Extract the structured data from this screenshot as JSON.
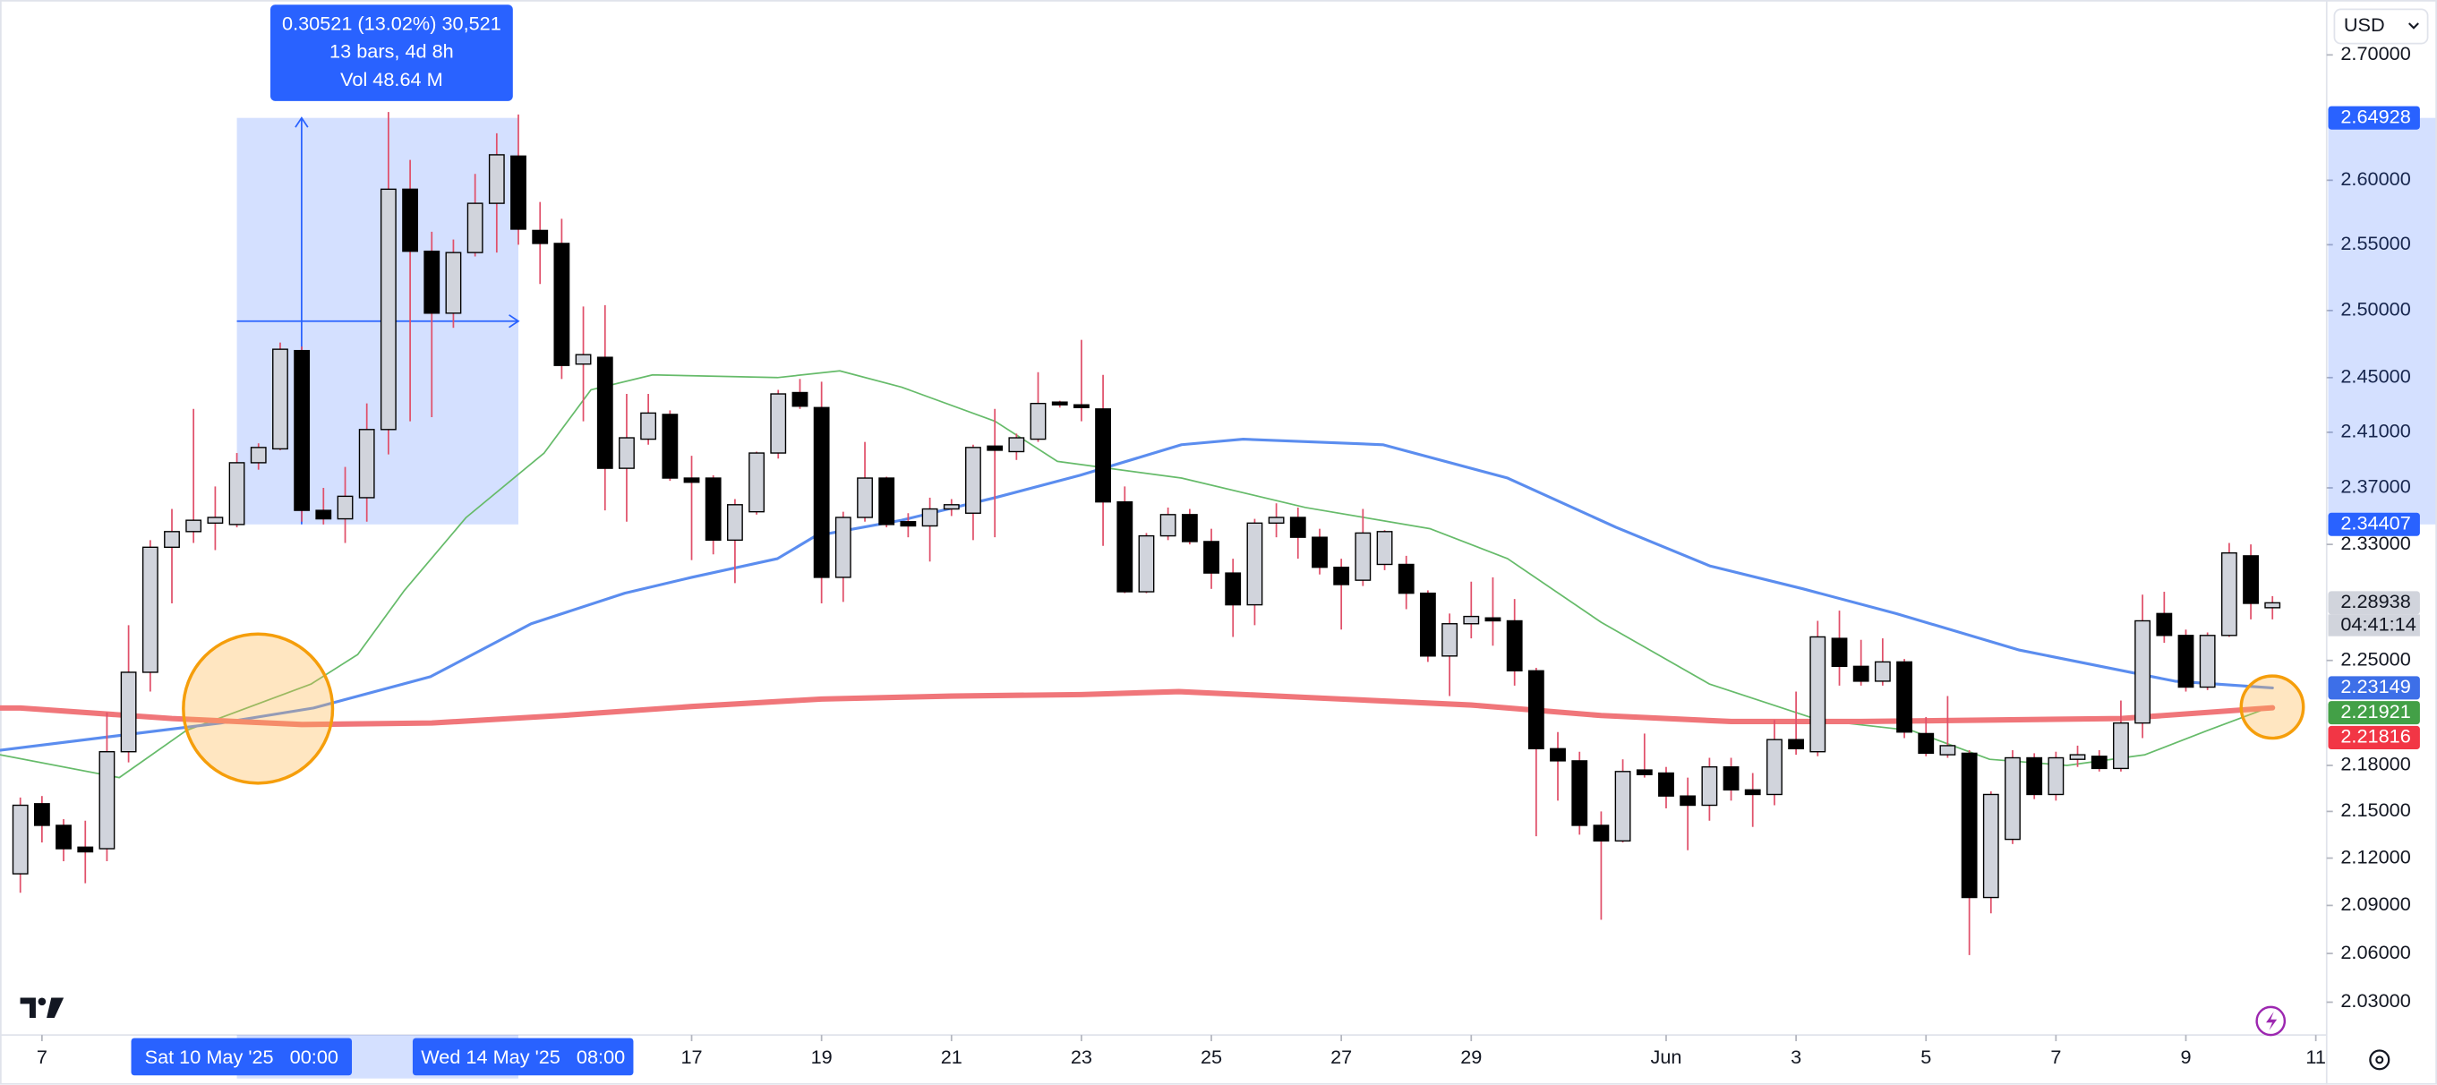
{
  "chart_data": {
    "type": "candlestick",
    "currency": "USD",
    "log_scale": true,
    "x": [
      6.667,
      7,
      7.333,
      7.667,
      8,
      8.333,
      8.667,
      9,
      9.333,
      9.667,
      10,
      10.333,
      10.667,
      11,
      11.333,
      11.667,
      12,
      12.333,
      12.667,
      13,
      13.333,
      13.667,
      14,
      14.333,
      14.667,
      15,
      15.333,
      15.667,
      16,
      16.333,
      16.667,
      17,
      17.333,
      17.667,
      18,
      18.333,
      18.667,
      19,
      19.333,
      19.667,
      20,
      20.333,
      20.667,
      21,
      21.333,
      21.667,
      22,
      22.333,
      22.667,
      23,
      23.333,
      23.667,
      24,
      24.333,
      24.667,
      25,
      25.333,
      25.667,
      26,
      26.333,
      26.667,
      27,
      27.333,
      27.667,
      28,
      28.333,
      28.667,
      29,
      29.333,
      29.667,
      30,
      30.333,
      30.667,
      31,
      31.333,
      31.667,
      32,
      32.333,
      32.667,
      33,
      33.333,
      33.667,
      34,
      34.333,
      34.667,
      35,
      35.333,
      35.667,
      36,
      36.333,
      36.667,
      37,
      37.333,
      37.667,
      38,
      38.333,
      38.667,
      39,
      39.333,
      39.667,
      40,
      40.333,
      40.667,
      41,
      41.333
    ],
    "open": [
      2.11,
      2.155,
      2.141,
      2.127,
      2.126,
      2.189,
      2.242,
      2.328,
      2.339,
      2.345,
      2.344,
      2.388,
      2.398,
      2.47,
      2.354,
      2.348,
      2.363,
      2.412,
      2.593,
      2.545,
      2.498,
      2.544,
      2.582,
      2.619,
      2.561,
      2.551,
      2.46,
      2.465,
      2.384,
      2.405,
      2.423,
      2.377,
      2.377,
      2.333,
      2.353,
      2.395,
      2.439,
      2.428,
      2.307,
      2.349,
      2.377,
      2.346,
      2.343,
      2.355,
      2.352,
      2.4,
      2.396,
      2.405,
      2.432,
      2.43,
      2.427,
      2.36,
      2.297,
      2.336,
      2.351,
      2.332,
      2.31,
      2.288,
      2.345,
      2.349,
      2.335,
      2.314,
      2.305,
      2.316,
      2.316,
      2.296,
      2.253,
      2.275,
      2.279,
      2.277,
      2.243,
      2.191,
      2.183,
      2.141,
      2.131,
      2.177,
      2.175,
      2.16,
      2.154,
      2.179,
      2.164,
      2.161,
      2.197,
      2.189,
      2.265,
      2.246,
      2.236,
      2.249,
      2.201,
      2.187,
      2.188,
      2.095,
      2.132,
      2.185,
      2.161,
      2.184,
      2.186,
      2.178,
      2.208,
      2.282,
      2.267,
      2.232,
      2.267,
      2.322,
      2.286
    ],
    "high": [
      2.159,
      2.16,
      2.145,
      2.144,
      2.215,
      2.274,
      2.333,
      2.355,
      2.427,
      2.371,
      2.395,
      2.402,
      2.476,
      2.473,
      2.37,
      2.385,
      2.431,
      2.654,
      2.616,
      2.56,
      2.554,
      2.605,
      2.637,
      2.652,
      2.583,
      2.57,
      2.503,
      2.504,
      2.438,
      2.438,
      2.426,
      2.393,
      2.379,
      2.362,
      2.396,
      2.441,
      2.449,
      2.447,
      2.353,
      2.403,
      2.378,
      2.352,
      2.363,
      2.362,
      2.401,
      2.427,
      2.409,
      2.454,
      2.433,
      2.478,
      2.452,
      2.371,
      2.338,
      2.356,
      2.355,
      2.341,
      2.32,
      2.348,
      2.359,
      2.356,
      2.341,
      2.32,
      2.355,
      2.34,
      2.322,
      2.298,
      2.282,
      2.304,
      2.307,
      2.292,
      2.245,
      2.202,
      2.189,
      2.15,
      2.184,
      2.201,
      2.179,
      2.172,
      2.185,
      2.185,
      2.175,
      2.21,
      2.229,
      2.277,
      2.284,
      2.264,
      2.265,
      2.251,
      2.212,
      2.226,
      2.19,
      2.163,
      2.19,
      2.188,
      2.189,
      2.193,
      2.19,
      2.223,
      2.295,
      2.297,
      2.271,
      2.269,
      2.331,
      2.33,
      2.294
    ],
    "low": [
      2.098,
      2.13,
      2.118,
      2.104,
      2.118,
      2.182,
      2.229,
      2.289,
      2.331,
      2.326,
      2.342,
      2.383,
      2.397,
      2.346,
      2.344,
      2.331,
      2.346,
      2.394,
      2.418,
      2.421,
      2.487,
      2.541,
      2.544,
      2.55,
      2.52,
      2.449,
      2.418,
      2.354,
      2.346,
      2.401,
      2.375,
      2.319,
      2.323,
      2.303,
      2.351,
      2.391,
      2.427,
      2.289,
      2.29,
      2.346,
      2.342,
      2.335,
      2.318,
      2.35,
      2.333,
      2.335,
      2.39,
      2.403,
      2.428,
      2.418,
      2.329,
      2.296,
      2.296,
      2.333,
      2.33,
      2.299,
      2.266,
      2.274,
      2.335,
      2.32,
      2.309,
      2.271,
      2.301,
      2.312,
      2.285,
      2.249,
      2.226,
      2.265,
      2.26,
      2.233,
      2.134,
      2.157,
      2.135,
      2.081,
      2.13,
      2.172,
      2.152,
      2.125,
      2.144,
      2.157,
      2.14,
      2.154,
      2.187,
      2.186,
      2.233,
      2.233,
      2.233,
      2.198,
      2.186,
      2.185,
      2.059,
      2.085,
      2.129,
      2.158,
      2.157,
      2.179,
      2.176,
      2.176,
      2.198,
      2.262,
      2.229,
      2.23,
      2.266,
      2.278,
      2.278
    ],
    "close": [
      2.154,
      2.141,
      2.126,
      2.124,
      2.189,
      2.242,
      2.328,
      2.339,
      2.347,
      2.349,
      2.388,
      2.399,
      2.471,
      2.354,
      2.348,
      2.364,
      2.412,
      2.593,
      2.545,
      2.498,
      2.544,
      2.582,
      2.62,
      2.562,
      2.551,
      2.459,
      2.467,
      2.384,
      2.406,
      2.424,
      2.377,
      2.374,
      2.333,
      2.358,
      2.395,
      2.438,
      2.429,
      2.307,
      2.349,
      2.377,
      2.344,
      2.343,
      2.355,
      2.358,
      2.399,
      2.397,
      2.406,
      2.431,
      2.43,
      2.428,
      2.36,
      2.297,
      2.336,
      2.351,
      2.332,
      2.31,
      2.288,
      2.345,
      2.349,
      2.335,
      2.314,
      2.302,
      2.338,
      2.339,
      2.296,
      2.253,
      2.275,
      2.28,
      2.277,
      2.243,
      2.191,
      2.183,
      2.141,
      2.131,
      2.176,
      2.174,
      2.16,
      2.154,
      2.179,
      2.164,
      2.161,
      2.197,
      2.191,
      2.266,
      2.246,
      2.236,
      2.249,
      2.202,
      2.188,
      2.193,
      2.095,
      2.161,
      2.185,
      2.161,
      2.185,
      2.187,
      2.178,
      2.208,
      2.277,
      2.267,
      2.232,
      2.267,
      2.324,
      2.289,
      2.28938
    ],
    "up_color": "#d1d4dc",
    "down_color": "#000000",
    "wick_color": "#e0506a",
    "series": [
      {
        "color": "#66bb6a",
        "x": [
          6.354,
          8.19,
          9.22,
          11.14,
          11.86,
          12.58,
          13.53,
          14.73,
          15.45,
          16.4,
          18.32,
          19.28,
          20.23,
          21.67,
          22.63,
          24.54,
          26.45,
          28.37,
          29.56,
          31.0,
          32.67,
          34.35,
          35.78,
          36.98,
          38.17,
          39.37,
          40.33,
          41.333
        ],
        "values": [
          2.187,
          2.172,
          2.203,
          2.234,
          2.254,
          2.298,
          2.349,
          2.395,
          2.441,
          2.452,
          2.45,
          2.455,
          2.443,
          2.418,
          2.389,
          2.377,
          2.356,
          2.341,
          2.32,
          2.276,
          2.234,
          2.21,
          2.203,
          2.184,
          2.18,
          2.187,
          2.203,
          2.21921
        ]
      },
      {
        "color": "#5b8def",
        "x": [
          6.354,
          9.75,
          11.18,
          12.98,
          14.53,
          15.97,
          17.0,
          18.32,
          18.91,
          20.23,
          21.67,
          22.98,
          24.54,
          25.49,
          27.64,
          29.56,
          31.23,
          32.67,
          34.11,
          35.54,
          37.44,
          39.83,
          41.333
        ],
        "values": [
          2.19,
          2.208,
          2.218,
          2.239,
          2.275,
          2.296,
          2.307,
          2.32,
          2.336,
          2.347,
          2.363,
          2.379,
          2.401,
          2.405,
          2.401,
          2.377,
          2.342,
          2.315,
          2.299,
          2.282,
          2.257,
          2.236,
          2.23149
        ]
      },
      {
        "color": "#f0767a",
        "x": [
          6.354,
          6.667,
          9,
          11,
          13,
          15,
          17,
          19,
          21,
          23,
          24.5,
          27,
          29,
          31,
          33,
          35,
          37,
          39,
          41.333
        ],
        "values": [
          2.218,
          2.218,
          2.211,
          2.207,
          2.208,
          2.213,
          2.219,
          2.224,
          2.226,
          2.227,
          2.229,
          2.224,
          2.22,
          2.213,
          2.209,
          2.209,
          2.21,
          2.211,
          2.21816
        ]
      }
    ],
    "xlim": [
      6.354,
      42.167
    ],
    "ylim": [
      2.011,
      2.745
    ],
    "yticks": [
      {
        "value": 2.7,
        "label": "2.70000"
      },
      {
        "value": 2.6,
        "label": "2.60000"
      },
      {
        "value": 2.55,
        "label": "2.55000"
      },
      {
        "value": 2.5,
        "label": "2.50000"
      },
      {
        "value": 2.45,
        "label": "2.45000"
      },
      {
        "value": 2.41,
        "label": "2.41000"
      },
      {
        "value": 2.37,
        "label": "2.37000"
      },
      {
        "value": 2.33,
        "label": "2.33000"
      },
      {
        "value": 2.25,
        "label": "2.25000"
      },
      {
        "value": 2.18,
        "label": "2.18000"
      },
      {
        "value": 2.15,
        "label": "2.15000"
      },
      {
        "value": 2.12,
        "label": "2.12000"
      },
      {
        "value": 2.09,
        "label": "2.09000"
      },
      {
        "value": 2.06,
        "label": "2.06000"
      },
      {
        "value": 2.03,
        "label": "2.03000"
      }
    ],
    "xticks": [
      7,
      17,
      19,
      21,
      23,
      25,
      27,
      29,
      {
        "value": 32,
        "label": "Jun"
      },
      {
        "value": 34,
        "label": "3"
      },
      {
        "value": 36,
        "label": "5"
      },
      {
        "value": 38,
        "label": "7"
      },
      {
        "value": 40,
        "label": "9"
      },
      {
        "value": 42,
        "label": "11"
      }
    ],
    "price_labels": [
      {
        "value": 2.64928,
        "label": "2.64928",
        "color": "#2962ff"
      },
      {
        "value": 2.34407,
        "label": "2.34407",
        "color": "#2962ff"
      },
      {
        "value": 2.28938,
        "label": "2.28938",
        "color": "#d1d4dc"
      },
      {
        "value": 2.23149,
        "label": "2.23149",
        "color": "#3d6fe8"
      },
      {
        "value": 2.21921,
        "label": "2.21921",
        "color": "#43a047"
      },
      {
        "value": 2.21816,
        "label": "2.21816",
        "color": "#f23645"
      }
    ],
    "countdown": "04:41:14",
    "measure": {
      "x_start": 10,
      "x_end": 14.333,
      "price_low": 2.34407,
      "price_high": 2.64928,
      "lines": [
        "0.30521 (13.02%) 30,521",
        "13 bars, 4d 8h",
        "Vol 48.64 M"
      ],
      "x_labels": [
        "Sat 10 May '25   00:00",
        "Wed 14 May '25   08:00"
      ]
    }
  }
}
